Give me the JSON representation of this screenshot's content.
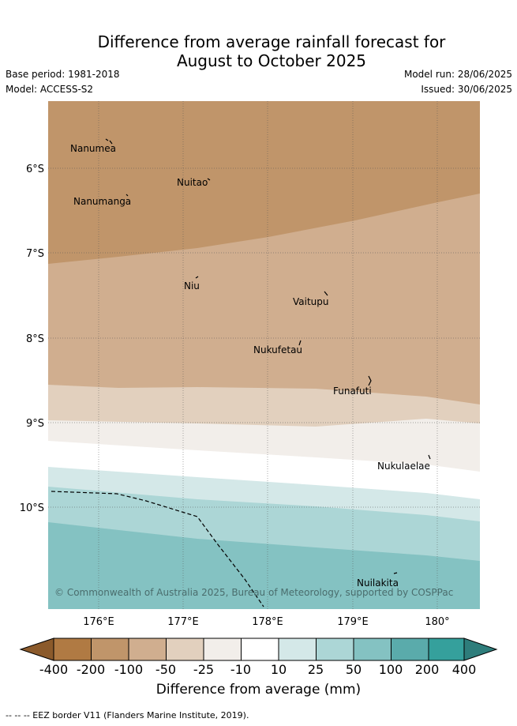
{
  "header": {
    "title_line1": "Difference from average rainfall forecast for",
    "title_line2": "August to October 2025",
    "base_period": "Base period: 1981-2018",
    "model": "Model: ACCESS-S2",
    "model_run": "Model run: 28/06/2025",
    "issued": "Issued: 30/06/2025"
  },
  "map": {
    "lat_labels": [
      "6°S",
      "7°S",
      "8°S",
      "9°S",
      "10°S"
    ],
    "lon_labels": [
      "176°E",
      "177°E",
      "178°E",
      "179°E",
      "180°"
    ],
    "islands": [
      "Nanumea",
      "Nuitao",
      "Nanumanga",
      "Niu",
      "Vaitupu",
      "Nukufetau",
      "Funafuti",
      "Nukulaelae",
      "Nuilakita"
    ],
    "copyright": "© Commonwealth of Australia 2025, Bureau of Meteorology, supported by COSPPac",
    "category_colors": {
      "-200_to_-100": "#c0956a",
      "-100_to_-50": "#d0ae8f",
      "-50_to_-25": "#e2d0be",
      "-25_to_-10": "#f2eeea",
      "-10_to_10": "#ffffff",
      "10_to_25": "#d4e8e8",
      "25_to_50": "#acd6d6",
      "50_to_100": "#84c2c2"
    }
  },
  "colorbar": {
    "labels": [
      "-400",
      "-200",
      "-100",
      "-50",
      "-25",
      "-10",
      "10",
      "25",
      "50",
      "100",
      "200",
      "400"
    ],
    "colors": [
      "#8b5a2b",
      "#b07a43",
      "#c0956a",
      "#d0ae8f",
      "#e2d0be",
      "#f2eeea",
      "#ffffff",
      "#d4e8e8",
      "#acd6d6",
      "#84c2c2",
      "#5aabab",
      "#35a09c",
      "#2e7d7b"
    ],
    "title": "Difference from average (mm)"
  },
  "footer": {
    "legend_line": "-- -- -- EEZ border V11 (Flanders Marine Institute, 2019)."
  }
}
